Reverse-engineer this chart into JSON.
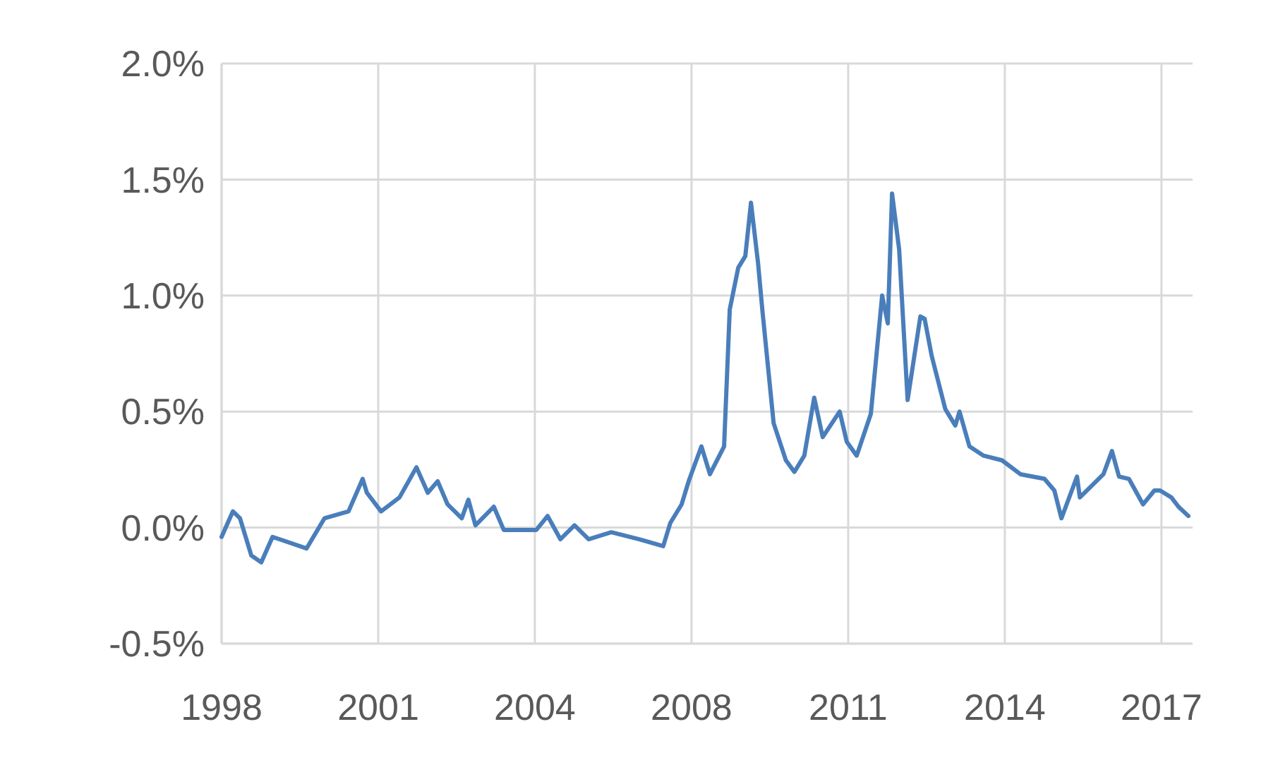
{
  "chart_data": {
    "type": "line",
    "x": [
      1997.55,
      1997.79,
      1997.94,
      1998.18,
      1998.39,
      1998.63,
      1999.35,
      1999.73,
      2000.24,
      2000.54,
      2000.63,
      2000.93,
      2001.32,
      2001.68,
      2001.92,
      2002.13,
      2002.34,
      2002.64,
      2002.78,
      2002.93,
      2003.32,
      2003.53,
      2004.22,
      2004.46,
      2004.73,
      2005.03,
      2005.33,
      2005.81,
      2006.4,
      2006.91,
      2007.06,
      2007.3,
      2007.45,
      2007.72,
      2007.9,
      2008.2,
      2008.32,
      2008.5,
      2008.65,
      2008.77,
      2008.92,
      2009.01,
      2009.25,
      2009.51,
      2009.69,
      2009.9,
      2010.11,
      2010.29,
      2010.65,
      2010.8,
      2011.01,
      2011.31,
      2011.55,
      2011.67,
      2011.76,
      2011.91,
      2012.09,
      2012.36,
      2012.45,
      2012.6,
      2012.89,
      2013.1,
      2013.19,
      2013.4,
      2013.7,
      2014.09,
      2014.48,
      2014.99,
      2015.2,
      2015.35,
      2015.68,
      2015.74,
      2016.24,
      2016.42,
      2016.57,
      2016.78,
      2017.08,
      2017.32,
      2017.44,
      2017.68,
      2017.83,
      2018.04
    ],
    "series": [
      {
        "color": "#4a7ebb",
        "values": [
          -0.04,
          0.07,
          0.04,
          -0.12,
          -0.15,
          -0.04,
          -0.09,
          0.04,
          0.07,
          0.21,
          0.15,
          0.07,
          0.13,
          0.26,
          0.15,
          0.2,
          0.1,
          0.04,
          0.12,
          0.01,
          0.09,
          -0.01,
          -0.01,
          0.05,
          -0.05,
          0.01,
          -0.05,
          -0.02,
          -0.05,
          -0.08,
          0.02,
          0.1,
          0.2,
          0.35,
          0.23,
          0.35,
          0.94,
          1.12,
          1.17,
          1.4,
          1.14,
          0.94,
          0.45,
          0.29,
          0.24,
          0.31,
          0.56,
          0.39,
          0.5,
          0.37,
          0.31,
          0.49,
          1.0,
          0.88,
          1.44,
          1.2,
          0.55,
          0.91,
          0.9,
          0.74,
          0.51,
          0.44,
          0.5,
          0.35,
          0.31,
          0.29,
          0.23,
          0.21,
          0.16,
          0.04,
          0.22,
          0.13,
          0.23,
          0.33,
          0.22,
          0.21,
          0.1,
          0.16,
          0.16,
          0.13,
          0.09,
          0.05
        ]
      }
    ],
    "xlim": [
      1997.55,
      2018.13
    ],
    "xticks": [
      {
        "value": 1997.55,
        "label": "1998"
      },
      {
        "value": 2000.87,
        "label": "2001"
      },
      {
        "value": 2004.19,
        "label": "2004"
      },
      {
        "value": 2007.51,
        "label": "2008"
      },
      {
        "value": 2010.83,
        "label": "2011"
      },
      {
        "value": 2014.15,
        "label": "2014"
      },
      {
        "value": 2017.47,
        "label": "2017"
      }
    ],
    "ylim": [
      -0.5,
      2.0
    ],
    "yticks": [
      {
        "value": -0.5,
        "label": "-0.5%"
      },
      {
        "value": 0,
        "label": "0.0%"
      },
      {
        "value": 0.5,
        "label": "0.5%"
      },
      {
        "value": 1,
        "label": "1.0%"
      },
      {
        "value": 1.5,
        "label": "1.5%"
      },
      {
        "value": 2,
        "label": "2.0%"
      }
    ],
    "grid": true,
    "marker": "none",
    "line_style": "solid"
  }
}
